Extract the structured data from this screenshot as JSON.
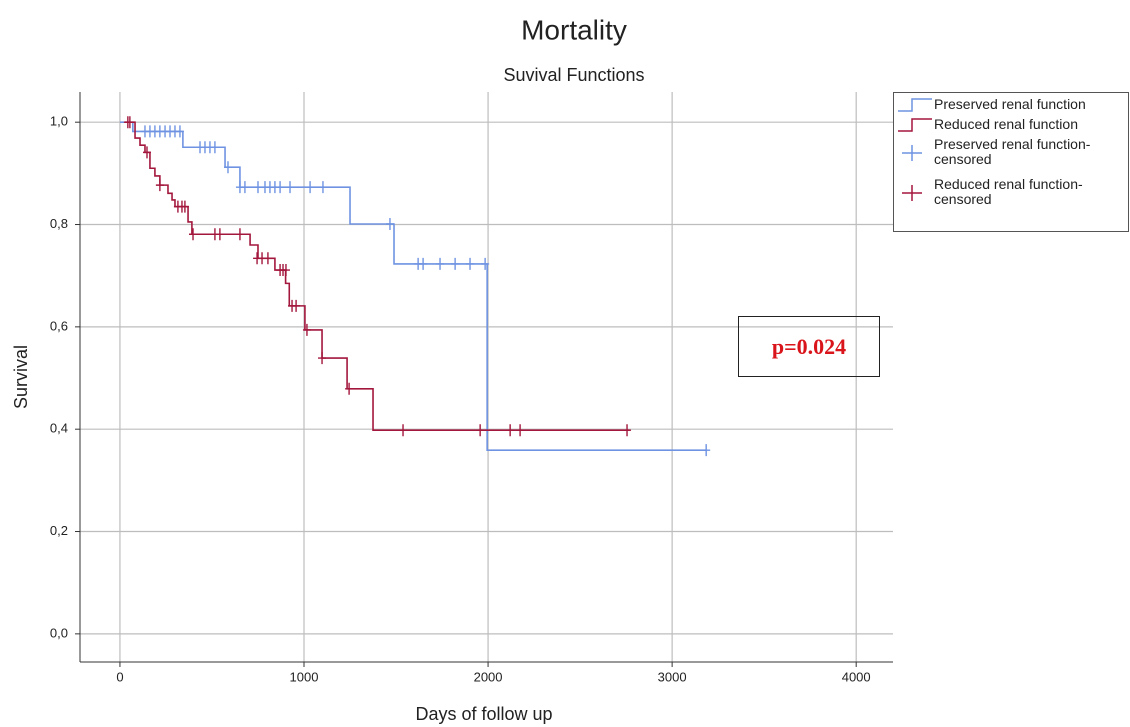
{
  "chart_data": {
    "type": "km-step",
    "title": "Mortality",
    "subtitle": "Suvival Functions",
    "x_label": "Days of follow up",
    "y_label": "Survival",
    "xlim": [
      -217,
      4200
    ],
    "ylim": [
      -0.055,
      1.059
    ],
    "xticks": [
      0,
      1000,
      2000,
      3000,
      4000
    ],
    "yticks": [
      {
        "value": 0,
        "label": "0,0"
      },
      {
        "value": 0.2,
        "label": "0,2"
      },
      {
        "value": 0.4,
        "label": "0,4"
      },
      {
        "value": 0.6,
        "label": "0,6"
      },
      {
        "value": 0.8,
        "label": "0,8"
      },
      {
        "value": 1,
        "label": "1,0"
      }
    ],
    "grid": true,
    "legend": "top-right",
    "annotation": "p=0.024",
    "series": [
      {
        "name": "Preserved renal function",
        "style": "step",
        "color": "#6f93e2",
        "x": [
          0,
          70,
          342,
          571,
          652,
          1250,
          1489,
          1995,
          3185
        ],
        "values": [
          1.0,
          0.982,
          0.951,
          0.912,
          0.873,
          0.801,
          0.723,
          0.359,
          0.359
        ]
      },
      {
        "name": "Reduced renal function",
        "style": "step",
        "color": "#a3173d",
        "x": [
          27,
          82,
          109,
          136,
          163,
          190,
          217,
          261,
          283,
          299,
          370,
          391,
          707,
          750,
          842,
          900,
          920,
          1005,
          1098,
          1234,
          1375,
          2770
        ],
        "values": [
          1.0,
          0.969,
          0.955,
          0.941,
          0.91,
          0.895,
          0.877,
          0.861,
          0.848,
          0.835,
          0.805,
          0.781,
          0.76,
          0.734,
          0.711,
          0.685,
          0.641,
          0.594,
          0.539,
          0.479,
          0.398,
          0.398
        ]
      },
      {
        "name": "Preserved renal function-censored",
        "style": "censor",
        "color": "#6f93e2",
        "x": [
          136,
          163,
          190,
          217,
          245,
          272,
          299,
          326,
          435,
          462,
          489,
          516,
          587,
          652,
          679,
          750,
          788,
          815,
          842,
          870,
          924,
          1033,
          1103,
          1467,
          1620,
          1647,
          1739,
          1821,
          1902,
          1984,
          3185
        ],
        "values": [
          0.982,
          0.982,
          0.982,
          0.982,
          0.982,
          0.982,
          0.982,
          0.982,
          0.951,
          0.951,
          0.951,
          0.951,
          0.912,
          0.873,
          0.873,
          0.873,
          0.873,
          0.873,
          0.873,
          0.873,
          0.873,
          0.873,
          0.873,
          0.801,
          0.723,
          0.723,
          0.723,
          0.723,
          0.723,
          0.723,
          0.359
        ]
      },
      {
        "name": "Reduced renal function-censored",
        "style": "censor",
        "color": "#a3173d",
        "x": [
          43,
          54,
          147,
          217,
          315,
          337,
          353,
          397,
          516,
          543,
          652,
          745,
          772,
          804,
          870,
          886,
          902,
          935,
          957,
          1016,
          1098,
          1245,
          1538,
          1957,
          2120,
          2174,
          2755
        ],
        "values": [
          1.0,
          1.0,
          0.941,
          0.877,
          0.835,
          0.835,
          0.835,
          0.781,
          0.781,
          0.781,
          0.781,
          0.734,
          0.734,
          0.734,
          0.711,
          0.711,
          0.711,
          0.641,
          0.641,
          0.594,
          0.539,
          0.479,
          0.398,
          0.398,
          0.398,
          0.398,
          0.398
        ]
      }
    ]
  }
}
